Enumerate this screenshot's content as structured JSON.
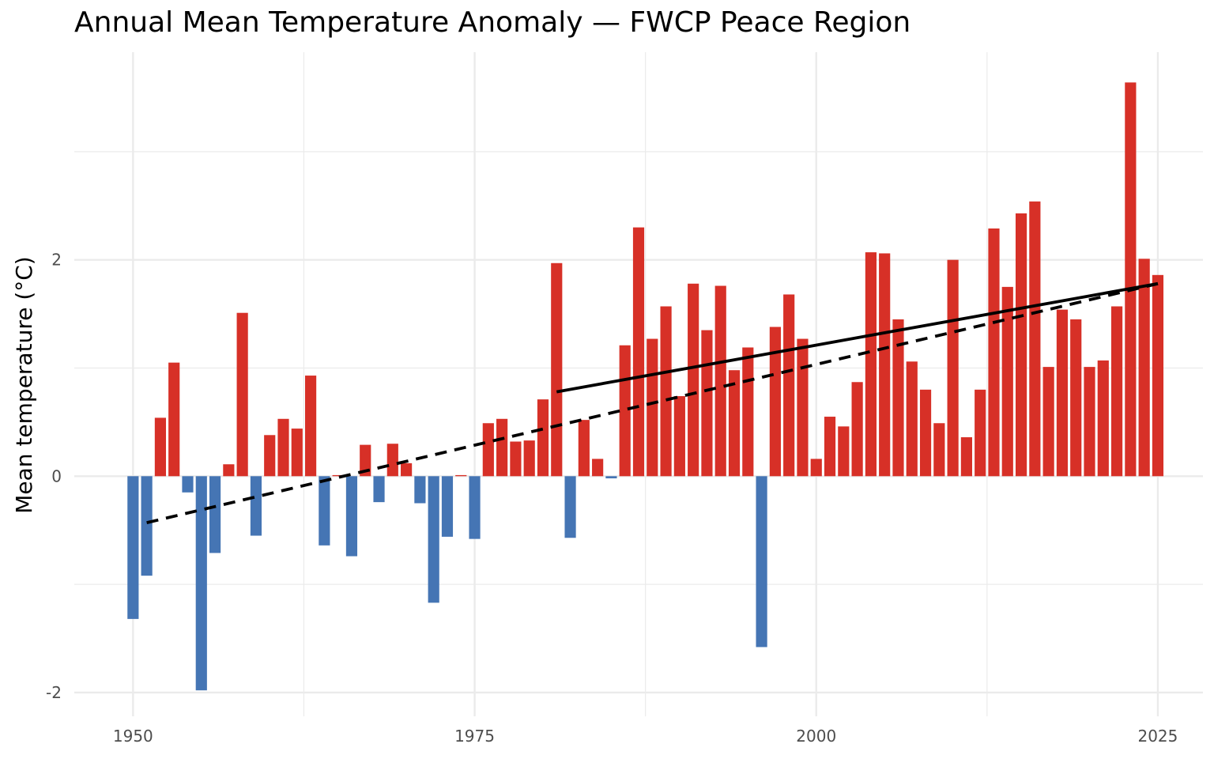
{
  "chart_data": {
    "type": "bar",
    "title": "Annual Mean Temperature Anomaly — FWCP Peace Region",
    "xlabel": "",
    "ylabel": "Mean temperature (°C)",
    "xlim": [
      1945.7,
      2028.3
    ],
    "ylim": [
      -2.22,
      3.92
    ],
    "x_ticks": [
      1950,
      1975,
      2000,
      2025
    ],
    "y_ticks": [
      -2,
      0,
      2
    ],
    "x_tick_labels": [
      "1950",
      "1975",
      "2000",
      "2025"
    ],
    "y_tick_labels": [
      "-2",
      "0",
      "2"
    ],
    "grid": true,
    "legend": "none",
    "colors": {
      "positive": "#d73027",
      "negative": "#4575b4",
      "trend": "#000000",
      "grid": "#ebebeb"
    },
    "x": [
      1950,
      1951,
      1952,
      1953,
      1954,
      1955,
      1956,
      1957,
      1958,
      1959,
      1960,
      1961,
      1962,
      1963,
      1964,
      1965,
      1966,
      1967,
      1968,
      1969,
      1970,
      1971,
      1972,
      1973,
      1974,
      1975,
      1976,
      1977,
      1978,
      1979,
      1980,
      1981,
      1982,
      1983,
      1984,
      1985,
      1986,
      1987,
      1988,
      1989,
      1990,
      1991,
      1992,
      1993,
      1994,
      1995,
      1996,
      1997,
      1998,
      1999,
      2000,
      2001,
      2002,
      2003,
      2004,
      2005,
      2006,
      2007,
      2008,
      2009,
      2010,
      2011,
      2012,
      2013,
      2014,
      2015,
      2016,
      2017,
      2018,
      2019,
      2020,
      2021,
      2022,
      2023,
      2024,
      2025
    ],
    "values": [
      -1.32,
      -0.92,
      0.54,
      1.05,
      -0.15,
      -1.98,
      -0.71,
      0.11,
      1.51,
      -0.55,
      0.38,
      0.53,
      0.44,
      0.93,
      -0.64,
      0.01,
      -0.74,
      0.29,
      -0.24,
      0.3,
      0.12,
      -0.25,
      -1.17,
      -0.56,
      0.01,
      -0.58,
      0.49,
      0.53,
      0.32,
      0.33,
      0.71,
      1.97,
      -0.57,
      0.52,
      0.16,
      -0.02,
      1.21,
      2.3,
      1.27,
      1.57,
      0.74,
      1.78,
      1.35,
      1.76,
      0.98,
      1.19,
      -1.58,
      1.38,
      1.68,
      1.27,
      0.16,
      0.55,
      0.46,
      0.87,
      2.07,
      2.06,
      1.45,
      1.06,
      0.8,
      0.49,
      2.0,
      0.36,
      0.8,
      2.29,
      1.75,
      2.43,
      2.54,
      1.01,
      1.54,
      1.45,
      1.01,
      1.07,
      1.57,
      3.64,
      2.01,
      1.86
    ],
    "trend_lines": [
      {
        "style": "dashed",
        "x": [
          1951,
          2025
        ],
        "y": [
          -0.43,
          1.78
        ]
      },
      {
        "style": "solid",
        "x": [
          1981,
          2025
        ],
        "y": [
          0.78,
          1.78
        ]
      }
    ]
  }
}
